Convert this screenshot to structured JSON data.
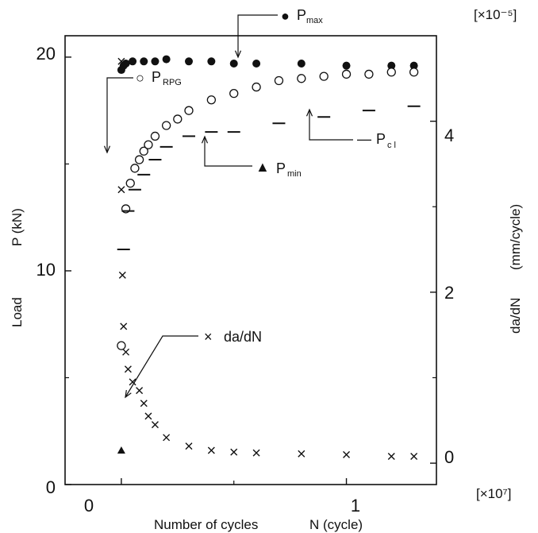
{
  "chart_data": {
    "type": "scatter",
    "title": "",
    "xlabel": "Number of cycles",
    "xlabel_var": "N (cycle)",
    "xmult": "[×10⁷]",
    "xlim": [
      -0.25,
      1.4
    ],
    "xticks": [
      "0",
      "1"
    ],
    "ylabel_left": "P (kN)",
    "ylabel_left_word": "Load",
    "ylim_left": [
      0,
      21
    ],
    "yticks_left": [
      "0",
      "10",
      "20"
    ],
    "ylabel_right": "da/dN",
    "ylabel_right_unit": "(mm/cycle)",
    "ymult_right": "[×10⁻⁵]",
    "ylim_right": [
      -0.25,
      5
    ],
    "yticks_right": [
      "0",
      "2",
      "4"
    ],
    "grid": false,
    "legend": {
      "pmax": {
        "symbol": "●",
        "label": "P",
        "sub": "max"
      },
      "prpg": {
        "symbol": "○",
        "label": "P",
        "sub": "RPG"
      },
      "pmin": {
        "symbol": "▲",
        "label": "P",
        "sub": "min"
      },
      "pcl": {
        "symbol": "—",
        "label": "P",
        "sub": "c l"
      },
      "dadn": {
        "symbol": "×",
        "label": "da/dN"
      }
    },
    "series": [
      {
        "name": "Pmax",
        "axis": "left",
        "marker": "filled-circle",
        "x": [
          0.0,
          0.01,
          0.02,
          0.05,
          0.1,
          0.15,
          0.2,
          0.3,
          0.4,
          0.5,
          0.6,
          0.8,
          1.0,
          1.2,
          1.3
        ],
        "y": [
          19.4,
          19.6,
          19.7,
          19.8,
          19.8,
          19.8,
          19.9,
          19.8,
          19.8,
          19.7,
          19.7,
          19.7,
          19.6,
          19.6,
          19.6
        ]
      },
      {
        "name": "PRPG",
        "axis": "left",
        "marker": "open-circle",
        "x": [
          0.0,
          0.02,
          0.04,
          0.06,
          0.08,
          0.1,
          0.12,
          0.15,
          0.2,
          0.25,
          0.3,
          0.4,
          0.5,
          0.6,
          0.7,
          0.8,
          0.9,
          1.0,
          1.1,
          1.2,
          1.3
        ],
        "y": [
          6.5,
          12.9,
          14.1,
          14.8,
          15.2,
          15.6,
          15.9,
          16.3,
          16.8,
          17.1,
          17.5,
          18.0,
          18.3,
          18.6,
          18.9,
          19.0,
          19.1,
          19.2,
          19.2,
          19.3,
          19.3
        ]
      },
      {
        "name": "Pmin",
        "axis": "left",
        "marker": "filled-triangle",
        "x": [
          0.0
        ],
        "y": [
          1.6
        ]
      },
      {
        "name": "Pcl",
        "axis": "left",
        "marker": "dash",
        "x": [
          0.01,
          0.03,
          0.06,
          0.1,
          0.15,
          0.2,
          0.3,
          0.4,
          0.5,
          0.7,
          0.9,
          1.1,
          1.3
        ],
        "y": [
          11.0,
          12.8,
          13.8,
          14.5,
          15.2,
          15.8,
          16.3,
          16.5,
          16.5,
          16.9,
          17.2,
          17.5,
          17.7
        ]
      },
      {
        "name": "da/dN",
        "axis": "right",
        "marker": "cross",
        "x": [
          0.0,
          0.0,
          0.005,
          0.01,
          0.02,
          0.03,
          0.05,
          0.08,
          0.1,
          0.12,
          0.15,
          0.2,
          0.3,
          0.4,
          0.5,
          0.6,
          0.8,
          1.0,
          1.2,
          1.3
        ],
        "y": [
          4.7,
          3.2,
          2.2,
          1.6,
          1.3,
          1.1,
          0.95,
          0.85,
          0.7,
          0.55,
          0.45,
          0.3,
          0.2,
          0.15,
          0.13,
          0.12,
          0.11,
          0.1,
          0.08,
          0.08
        ]
      }
    ]
  }
}
